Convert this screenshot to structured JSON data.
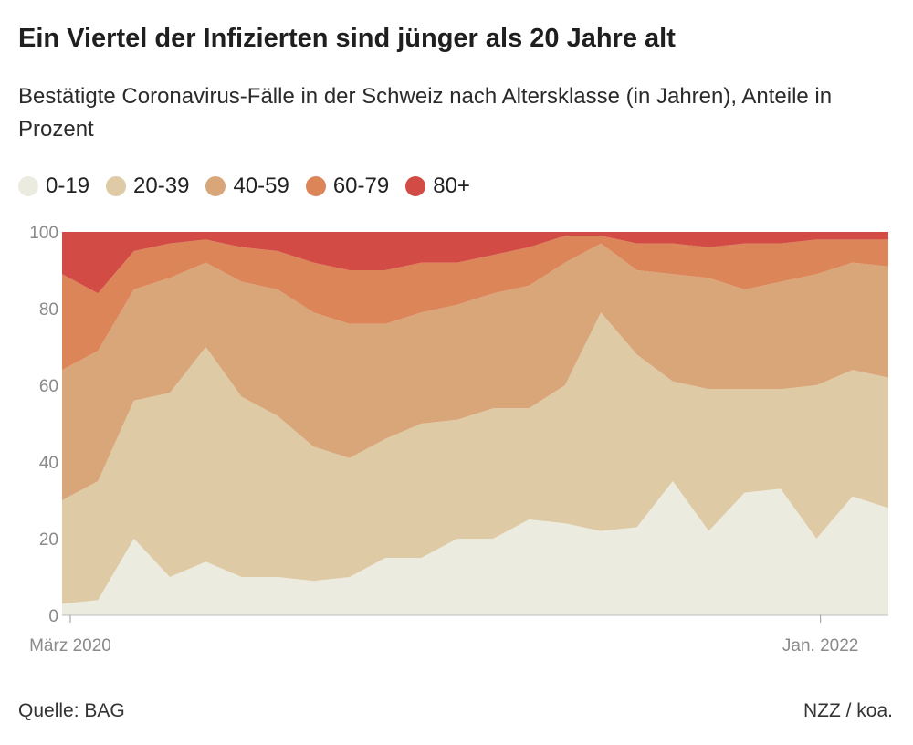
{
  "title": "Ein Viertel der Infizierten sind jünger als 20 Jahre alt",
  "subtitle": "Bestätigte Coronavirus-Fälle in der Schweiz nach Altersklasse (in Jahren), Anteile in Prozent",
  "source": "Quelle: BAG",
  "credit": "NZZ / koa.",
  "colors": {
    "0-19": "#ecebe0",
    "20-39": "#dfcaa6",
    "40-59": "#d9a679",
    "60-79": "#dc8559",
    "80+": "#d24b45"
  },
  "chart_data": {
    "type": "area",
    "stacked": true,
    "ylim": [
      0,
      100
    ],
    "yticks": [
      "0",
      "20",
      "40",
      "60",
      "80",
      "100"
    ],
    "xtick_labels": [
      "März 2020",
      "Jan. 2022"
    ],
    "x": [
      "2020-03",
      "2020-04",
      "2020-05",
      "2020-06",
      "2020-07",
      "2020-08",
      "2020-09",
      "2020-10",
      "2020-11",
      "2020-12",
      "2021-01",
      "2021-02",
      "2021-03",
      "2021-04",
      "2021-05",
      "2021-06",
      "2021-07",
      "2021-08",
      "2021-09",
      "2021-10",
      "2021-11",
      "2021-12",
      "2022-01",
      "2022-02"
    ],
    "series": [
      {
        "name": "0-19",
        "values": [
          3,
          4,
          20,
          10,
          14,
          10,
          10,
          9,
          10,
          15,
          15,
          20,
          20,
          25,
          24,
          22,
          23,
          35,
          22,
          32,
          33,
          20,
          31,
          28
        ]
      },
      {
        "name": "20-39",
        "values": [
          27,
          31,
          36,
          48,
          56,
          47,
          42,
          35,
          31,
          31,
          35,
          31,
          34,
          29,
          36,
          57,
          45,
          26,
          37,
          27,
          26,
          40,
          33,
          34
        ]
      },
      {
        "name": "40-59",
        "values": [
          34,
          34,
          29,
          30,
          22,
          30,
          33,
          35,
          35,
          30,
          29,
          30,
          30,
          32,
          32,
          18,
          22,
          28,
          29,
          26,
          28,
          29,
          28,
          29
        ]
      },
      {
        "name": "60-79",
        "values": [
          25,
          15,
          10,
          9,
          6,
          9,
          10,
          13,
          14,
          14,
          13,
          11,
          10,
          10,
          7,
          2,
          7,
          8,
          8,
          12,
          10,
          9,
          6,
          7
        ]
      },
      {
        "name": "80+",
        "values": [
          11,
          16,
          5,
          3,
          2,
          4,
          5,
          8,
          10,
          10,
          8,
          8,
          6,
          4,
          1,
          1,
          3,
          3,
          4,
          3,
          3,
          2,
          2,
          2
        ]
      }
    ]
  }
}
